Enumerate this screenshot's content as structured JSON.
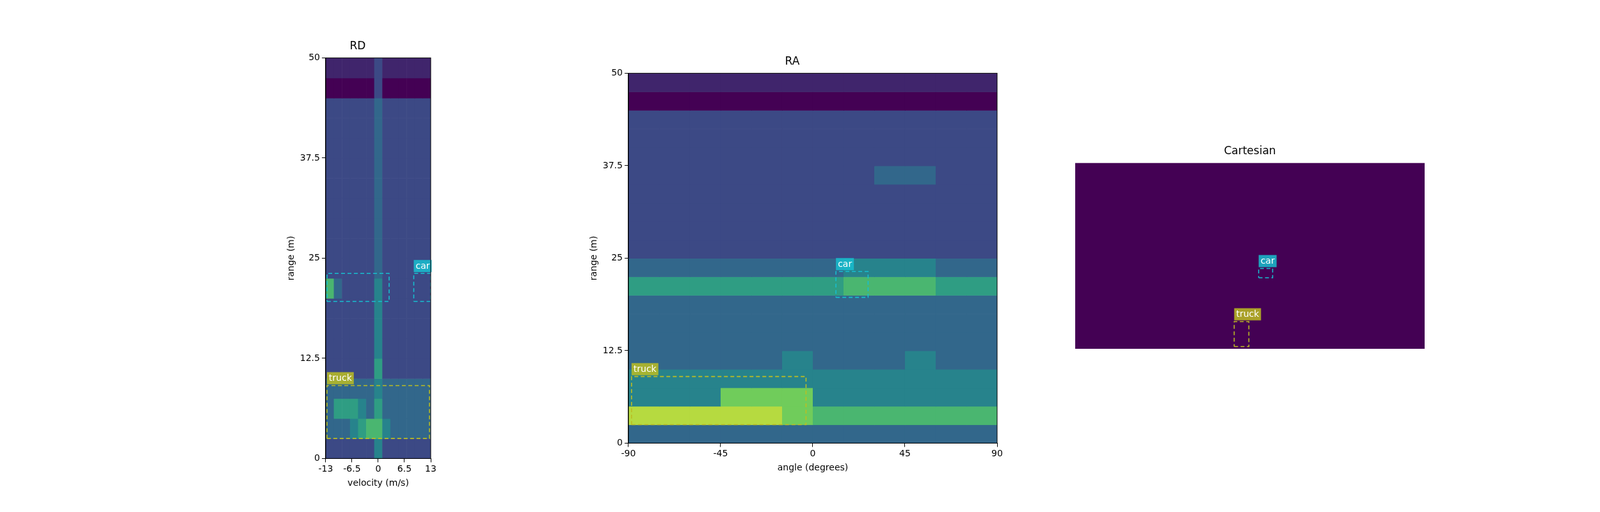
{
  "chart_data": [
    {
      "type": "heatmap",
      "title": "RD",
      "x_label": "velocity (m/s)",
      "y_label": "range (m)",
      "xlim": [
        -13,
        13
      ],
      "ylim": [
        0,
        50
      ],
      "xticks": [
        -13,
        -6.5,
        0,
        6.5,
        13
      ],
      "yticks": [
        0,
        12.5,
        25,
        37.5,
        50
      ],
      "zlim": [
        0,
        9
      ],
      "cells": [
        [
          2,
          2,
          2,
          2,
          2,
          2,
          4,
          2,
          2,
          2,
          2,
          2,
          2
        ],
        [
          3,
          3,
          3,
          4,
          5,
          6,
          6,
          4,
          3,
          3,
          3,
          3,
          3
        ],
        [
          3,
          5,
          5,
          5,
          4,
          3,
          5,
          3,
          3,
          3,
          3,
          3,
          3
        ],
        [
          3,
          3,
          3,
          3,
          3,
          3,
          4,
          3,
          3,
          3,
          3,
          3,
          3
        ],
        [
          2,
          2,
          2,
          2,
          2,
          2,
          5,
          2,
          2,
          2,
          2,
          2,
          2
        ],
        [
          2,
          2,
          2,
          2,
          2,
          2,
          4,
          2,
          2,
          2,
          2,
          2,
          2
        ],
        [
          2,
          2,
          2,
          2,
          2,
          2,
          4,
          2,
          2,
          2,
          2,
          2,
          2
        ],
        [
          2,
          2,
          2,
          2,
          2,
          2,
          4,
          2,
          2,
          2,
          2,
          2,
          2
        ],
        [
          6,
          3,
          2,
          2,
          2,
          2,
          4,
          2,
          2,
          2,
          2,
          2,
          2
        ],
        [
          2,
          2,
          2,
          2,
          2,
          2,
          3,
          2,
          2,
          2,
          2,
          2,
          2
        ],
        [
          2,
          2,
          2,
          2,
          2,
          2,
          3,
          2,
          2,
          2,
          2,
          2,
          2
        ],
        [
          2,
          2,
          2,
          2,
          2,
          2,
          3,
          2,
          2,
          2,
          2,
          2,
          2
        ],
        [
          2,
          2,
          2,
          2,
          2,
          2,
          3,
          2,
          2,
          2,
          2,
          2,
          2
        ],
        [
          2,
          2,
          2,
          2,
          2,
          2,
          3,
          2,
          2,
          2,
          2,
          2,
          2
        ],
        [
          2,
          2,
          2,
          2,
          2,
          2,
          3,
          2,
          2,
          2,
          2,
          2,
          2
        ],
        [
          2,
          2,
          2,
          2,
          2,
          2,
          3,
          2,
          2,
          2,
          2,
          2,
          2
        ],
        [
          2,
          2,
          2,
          2,
          2,
          2,
          3,
          2,
          2,
          2,
          2,
          2,
          2
        ],
        [
          2,
          2,
          2,
          2,
          2,
          2,
          3,
          2,
          2,
          2,
          2,
          2,
          2
        ],
        [
          0,
          0,
          0,
          0,
          0,
          0,
          2,
          0,
          0,
          0,
          0,
          0,
          0
        ],
        [
          1,
          1,
          1,
          1,
          1,
          1,
          2,
          1,
          1,
          1,
          1,
          1,
          1
        ]
      ],
      "boxes": [
        {
          "label": "car",
          "color": "#17becf",
          "parts": [
            {
              "x": [
                -12.7,
                2.7
              ],
              "y": [
                19.6,
                23.1
              ]
            },
            {
              "x": [
                8.8,
                13
              ],
              "y": [
                19.6,
                23.1
              ]
            }
          ]
        },
        {
          "label": "truck",
          "color": "#bcbd22",
          "parts": [
            {
              "x": [
                -12.7,
                12.7
              ],
              "y": [
                2.5,
                9.1
              ]
            }
          ]
        }
      ]
    },
    {
      "type": "heatmap",
      "title": "RA",
      "x_label": "angle (degrees)",
      "y_label": "range (m)",
      "xlim": [
        -90,
        90
      ],
      "ylim": [
        0,
        50
      ],
      "xticks": [
        -90,
        -45,
        0,
        45,
        90
      ],
      "yticks": [
        0,
        12.5,
        25,
        37.5,
        50
      ],
      "zlim": [
        0,
        9
      ],
      "cells": [
        [
          3,
          3,
          3,
          3,
          3,
          3,
          3,
          3,
          3,
          3,
          3,
          3
        ],
        [
          8,
          8,
          8,
          8,
          8,
          7,
          6,
          6,
          6,
          6,
          6,
          6
        ],
        [
          4,
          4,
          4,
          7,
          7,
          7,
          4,
          4,
          4,
          4,
          4,
          4
        ],
        [
          4,
          4,
          4,
          4,
          4,
          4,
          4,
          4,
          4,
          4,
          4,
          4
        ],
        [
          3,
          3,
          3,
          3,
          3,
          4,
          3,
          3,
          3,
          4,
          3,
          3
        ],
        [
          3,
          3,
          3,
          3,
          3,
          3,
          3,
          3,
          3,
          3,
          3,
          3
        ],
        [
          3,
          3,
          3,
          3,
          3,
          3,
          3,
          3,
          3,
          3,
          3,
          3
        ],
        [
          3,
          3,
          3,
          3,
          3,
          3,
          3,
          3,
          3,
          3,
          3,
          3
        ],
        [
          5,
          5,
          5,
          5,
          5,
          5,
          5,
          6,
          6,
          6,
          5,
          5
        ],
        [
          3,
          3,
          3,
          3,
          3,
          3,
          3,
          4,
          4,
          4,
          3,
          3
        ],
        [
          2,
          2,
          2,
          2,
          2,
          2,
          2,
          2,
          2,
          2,
          2,
          2
        ],
        [
          2,
          2,
          2,
          2,
          2,
          2,
          2,
          2,
          2,
          2,
          2,
          2
        ],
        [
          2,
          2,
          2,
          2,
          2,
          2,
          2,
          2,
          2,
          2,
          2,
          2
        ],
        [
          2,
          2,
          2,
          2,
          2,
          2,
          2,
          2,
          2,
          2,
          2,
          2
        ],
        [
          2,
          2,
          2,
          2,
          2,
          2,
          2,
          2,
          3,
          3,
          2,
          2
        ],
        [
          2,
          2,
          2,
          2,
          2,
          2,
          2,
          2,
          2,
          2,
          2,
          2
        ],
        [
          2,
          2,
          2,
          2,
          2,
          2,
          2,
          2,
          2,
          2,
          2,
          2
        ],
        [
          2,
          2,
          2,
          2,
          2,
          2,
          2,
          2,
          2,
          2,
          2,
          2
        ],
        [
          0,
          0,
          0,
          0,
          0,
          0,
          0,
          0,
          0,
          0,
          0,
          0
        ],
        [
          1,
          1,
          1,
          1,
          1,
          1,
          1,
          1,
          1,
          1,
          1,
          1
        ]
      ],
      "boxes": [
        {
          "label": "car",
          "color": "#17becf",
          "parts": [
            {
              "x": [
                11.3,
                27
              ],
              "y": [
                19.7,
                23.2
              ]
            }
          ]
        },
        {
          "label": "truck",
          "color": "#bcbd22",
          "parts": [
            {
              "x": [
                -88.5,
                -3.3
              ],
              "y": [
                2.5,
                9.0
              ]
            }
          ]
        }
      ]
    },
    {
      "type": "heatmap",
      "title": "Cartesian",
      "tick_labels": false,
      "xlim": [
        -50,
        50
      ],
      "ylim": [
        0,
        50
      ],
      "zlim": [
        0,
        9
      ],
      "cells": [
        [
          0
        ]
      ],
      "boxes": [
        {
          "label": "car",
          "color": "#17becf",
          "parts": [
            {
              "x": [
                2.5,
                6.5
              ],
              "y": [
                19.1,
                21.6
              ]
            }
          ]
        },
        {
          "label": "truck",
          "color": "#bcbd22",
          "parts": [
            {
              "x": [
                -4.5,
                -0.3
              ],
              "y": [
                0.6,
                7.3
              ]
            }
          ]
        }
      ]
    }
  ]
}
